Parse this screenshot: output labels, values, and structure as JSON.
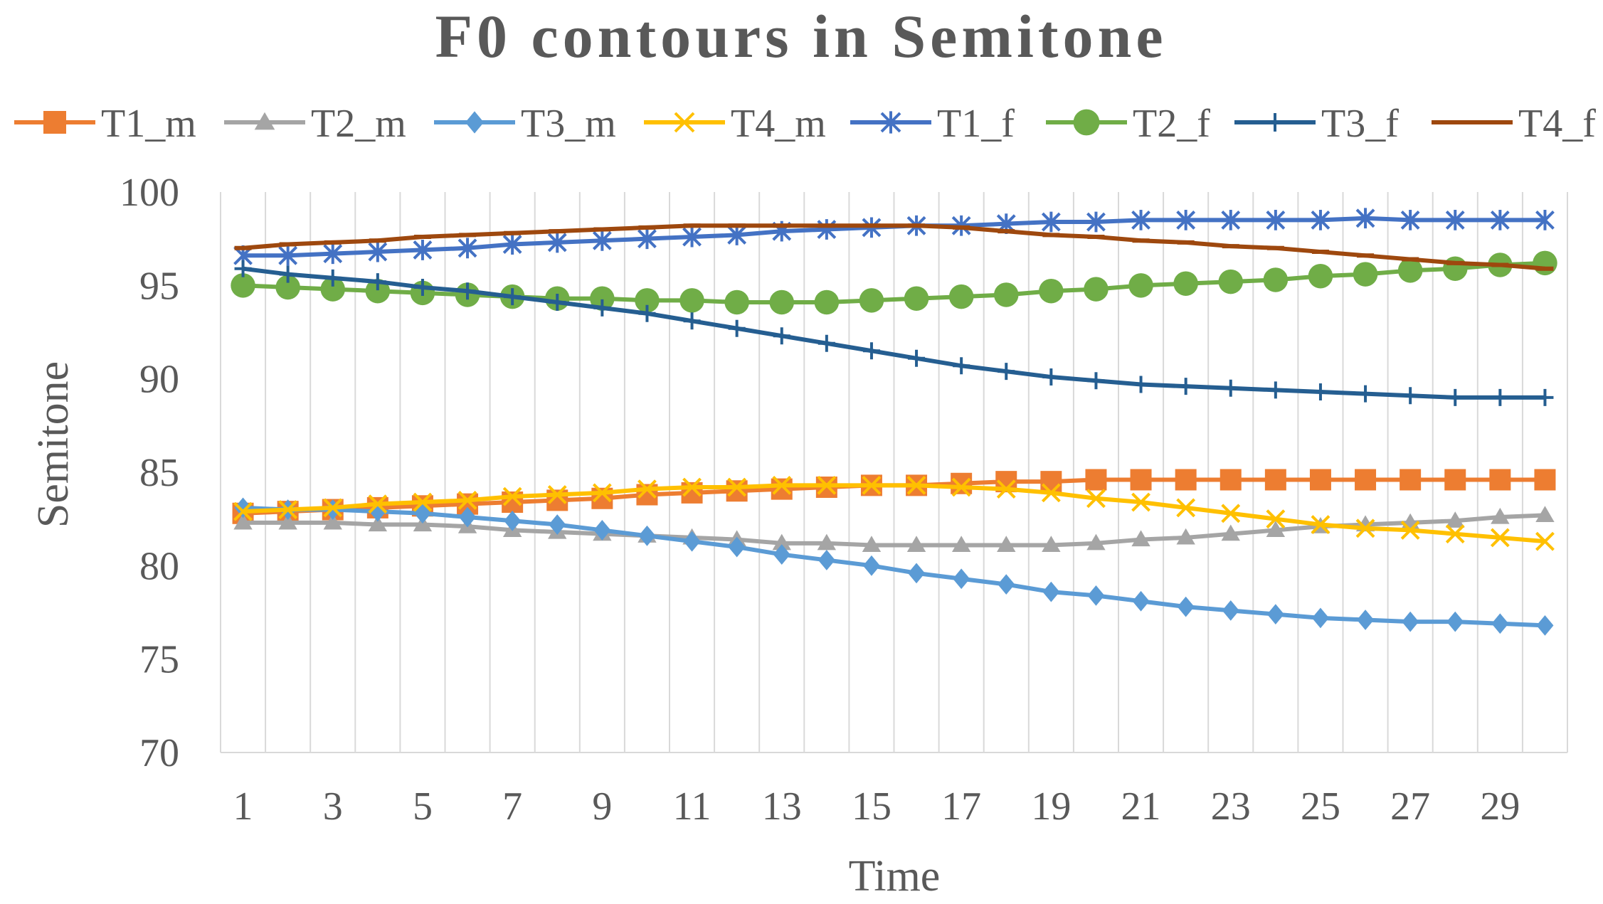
{
  "chart_data": {
    "type": "line",
    "title": "F0 contours in Semitone",
    "xlabel": "Time",
    "ylabel": "Semitone",
    "ylim": [
      70,
      100
    ],
    "yticks": [
      70,
      75,
      80,
      85,
      90,
      95,
      100
    ],
    "x": [
      1,
      2,
      3,
      4,
      5,
      6,
      7,
      8,
      9,
      10,
      11,
      12,
      13,
      14,
      15,
      16,
      17,
      18,
      19,
      20,
      21,
      22,
      23,
      24,
      25,
      26,
      27,
      28,
      29,
      30
    ],
    "xtick_labels": [
      1,
      3,
      5,
      7,
      9,
      11,
      13,
      15,
      17,
      19,
      21,
      23,
      25,
      27,
      29
    ],
    "grid": "vertical",
    "legend": "top",
    "series": [
      {
        "name": "T1_m",
        "color": "#ED7D31",
        "marker": "square",
        "values": [
          82.8,
          82.9,
          83.0,
          83.1,
          83.2,
          83.3,
          83.4,
          83.5,
          83.6,
          83.8,
          83.9,
          84.0,
          84.1,
          84.2,
          84.3,
          84.3,
          84.4,
          84.5,
          84.5,
          84.6,
          84.6,
          84.6,
          84.6,
          84.6,
          84.6,
          84.6,
          84.6,
          84.6,
          84.6,
          84.6
        ]
      },
      {
        "name": "T2_m",
        "color": "#A5A5A5",
        "marker": "triangle",
        "values": [
          82.3,
          82.3,
          82.3,
          82.2,
          82.2,
          82.1,
          81.9,
          81.8,
          81.7,
          81.6,
          81.5,
          81.4,
          81.2,
          81.2,
          81.1,
          81.1,
          81.1,
          81.1,
          81.1,
          81.2,
          81.4,
          81.5,
          81.7,
          81.9,
          82.1,
          82.2,
          82.3,
          82.4,
          82.6,
          82.7
        ]
      },
      {
        "name": "T3_m",
        "color": "#5B9BD5",
        "marker": "diamond",
        "values": [
          83.1,
          83.0,
          83.0,
          82.9,
          82.8,
          82.6,
          82.4,
          82.2,
          81.9,
          81.6,
          81.3,
          81.0,
          80.6,
          80.3,
          80.0,
          79.6,
          79.3,
          79.0,
          78.6,
          78.4,
          78.1,
          77.8,
          77.6,
          77.4,
          77.2,
          77.1,
          77.0,
          77.0,
          76.9,
          76.8
        ]
      },
      {
        "name": "T4_m",
        "color": "#FFC000",
        "marker": "x",
        "values": [
          82.9,
          83.0,
          83.1,
          83.3,
          83.4,
          83.5,
          83.7,
          83.8,
          83.9,
          84.1,
          84.2,
          84.2,
          84.3,
          84.3,
          84.3,
          84.3,
          84.2,
          84.1,
          83.9,
          83.6,
          83.4,
          83.1,
          82.8,
          82.5,
          82.2,
          82.0,
          81.9,
          81.7,
          81.5,
          81.3
        ]
      },
      {
        "name": "T1_f",
        "color": "#4472C4",
        "marker": "asterisk",
        "values": [
          96.6,
          96.6,
          96.7,
          96.8,
          96.9,
          97.0,
          97.2,
          97.3,
          97.4,
          97.5,
          97.6,
          97.7,
          97.9,
          98.0,
          98.1,
          98.2,
          98.2,
          98.3,
          98.4,
          98.4,
          98.5,
          98.5,
          98.5,
          98.5,
          98.5,
          98.6,
          98.5,
          98.5,
          98.5,
          98.5
        ]
      },
      {
        "name": "T2_f",
        "color": "#70AD47",
        "marker": "circle",
        "values": [
          95.0,
          94.9,
          94.8,
          94.7,
          94.6,
          94.5,
          94.4,
          94.3,
          94.3,
          94.2,
          94.2,
          94.1,
          94.1,
          94.1,
          94.2,
          94.3,
          94.4,
          94.5,
          94.7,
          94.8,
          95.0,
          95.1,
          95.2,
          95.3,
          95.5,
          95.6,
          95.8,
          95.9,
          96.1,
          96.2
        ]
      },
      {
        "name": "T3_f",
        "color": "#255E91",
        "marker": "plus",
        "values": [
          95.9,
          95.6,
          95.4,
          95.2,
          94.9,
          94.7,
          94.4,
          94.1,
          93.8,
          93.5,
          93.1,
          92.7,
          92.3,
          91.9,
          91.5,
          91.1,
          90.7,
          90.4,
          90.1,
          89.9,
          89.7,
          89.6,
          89.5,
          89.4,
          89.3,
          89.2,
          89.1,
          89.0,
          89.0,
          89.0
        ]
      },
      {
        "name": "T4_f",
        "color": "#9E480E",
        "marker": "dash",
        "values": [
          97.0,
          97.2,
          97.3,
          97.4,
          97.6,
          97.7,
          97.8,
          97.9,
          98.0,
          98.1,
          98.2,
          98.2,
          98.2,
          98.2,
          98.2,
          98.2,
          98.1,
          97.9,
          97.7,
          97.6,
          97.4,
          97.3,
          97.1,
          97.0,
          96.8,
          96.6,
          96.4,
          96.2,
          96.1,
          95.9
        ]
      }
    ]
  }
}
